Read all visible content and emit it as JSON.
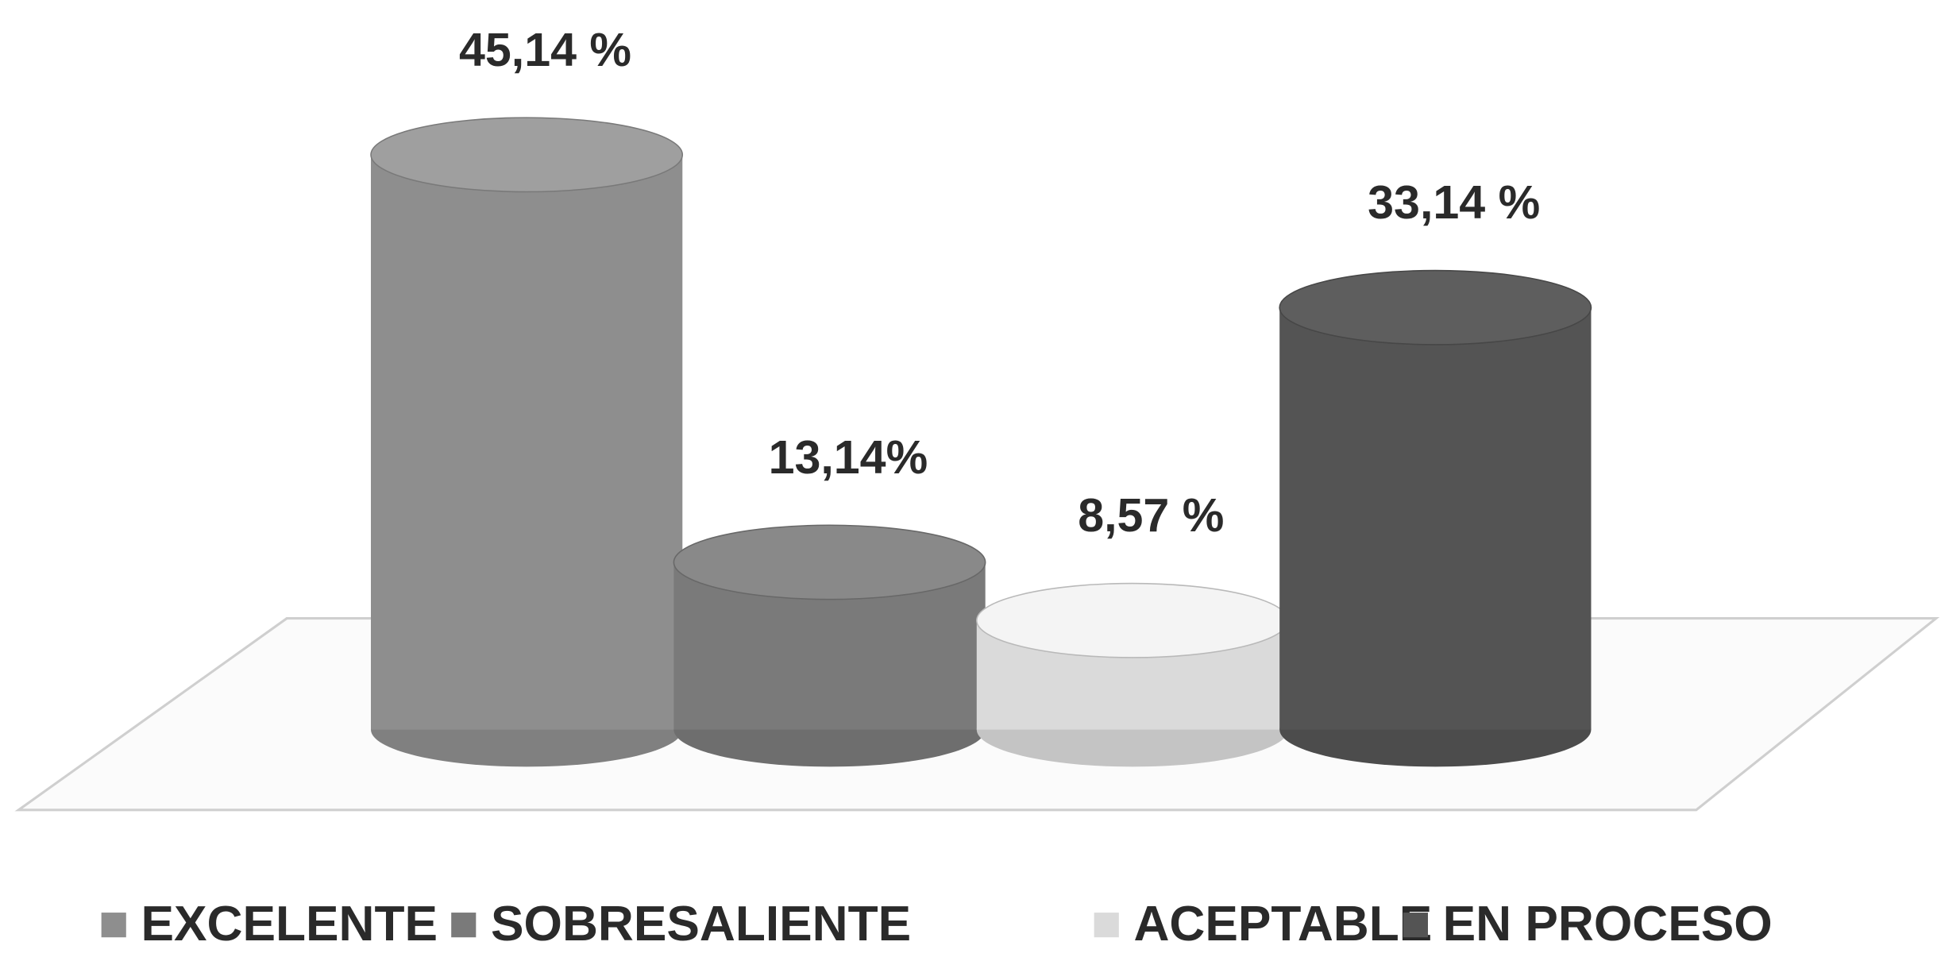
{
  "chart_data": {
    "type": "bar",
    "categories": [
      "EXCELENTE",
      "SOBRESALIENTE",
      "ACEPTABLE",
      "EN PROCESO"
    ],
    "values": [
      45.14,
      13.14,
      8.57,
      33.14
    ],
    "value_labels": [
      "45,14 %",
      "13,14%",
      "8,57 %",
      "33,14 %"
    ],
    "colors": [
      "#8e8e8e",
      "#7a7a7a",
      "#dadada",
      "#545454"
    ],
    "legend": "bottom"
  }
}
